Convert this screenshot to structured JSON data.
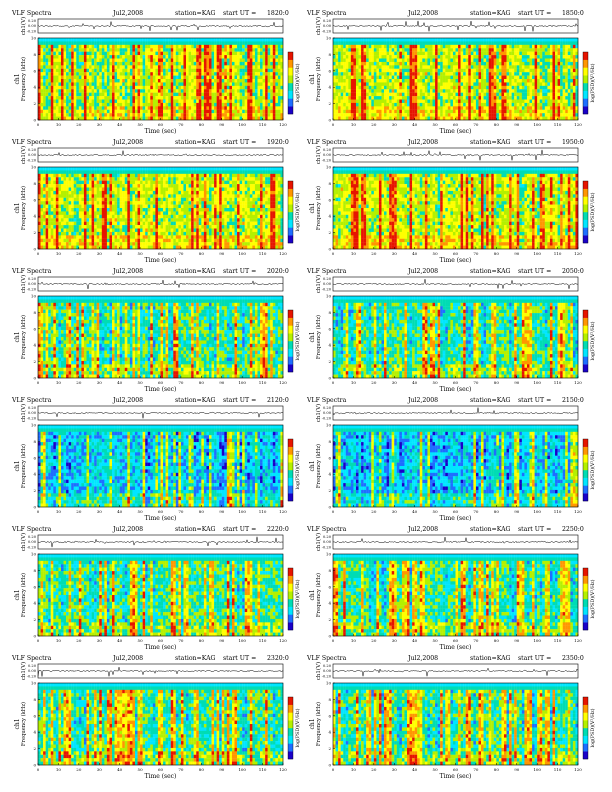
{
  "figure": {
    "background": "#ffffff"
  },
  "common": {
    "header_left": "VLF Spectra",
    "date": "Jul2,2008",
    "station": "station=KAG",
    "start_prefix": "start  UT  =",
    "wave_ylabel": "ch1(V)",
    "spec_ylabel_line1": "ch1",
    "spec_ylabel_line2": "Frequency  (kHz)",
    "colorbar_label": "log(PSD)(V²/Hz)",
    "xlabel": "Time  (sec)",
    "wave_yticks": [
      "0.20",
      "0.00",
      "-0.20"
    ],
    "spec_yticks": [
      "0",
      "2",
      "4",
      "6",
      "8",
      "10"
    ],
    "xticks": [
      "0",
      "10",
      "20",
      "30",
      "40",
      "50",
      "60",
      "70",
      "80",
      "90",
      "100",
      "110",
      "120"
    ],
    "colormap": [
      "#1a00c8",
      "#1e6eff",
      "#00e6ff",
      "#00dcb4",
      "#b4f000",
      "#ffff00",
      "#ff9600",
      "#e61400"
    ]
  },
  "chart_data": [
    {
      "type": "heatmap",
      "start_ut": "1820:0",
      "xlim": [
        0,
        120
      ],
      "ylim_khz": [
        0,
        10
      ],
      "intensity": "high"
    },
    {
      "type": "heatmap",
      "start_ut": "1850:0",
      "xlim": [
        0,
        120
      ],
      "ylim_khz": [
        0,
        10
      ],
      "intensity": "high"
    },
    {
      "type": "heatmap",
      "start_ut": "1920:0",
      "xlim": [
        0,
        120
      ],
      "ylim_khz": [
        0,
        10
      ],
      "intensity": "high"
    },
    {
      "type": "heatmap",
      "start_ut": "1950:0",
      "xlim": [
        0,
        120
      ],
      "ylim_khz": [
        0,
        10
      ],
      "intensity": "high"
    },
    {
      "type": "heatmap",
      "start_ut": "2020:0",
      "xlim": [
        0,
        120
      ],
      "ylim_khz": [
        0,
        10
      ],
      "intensity": "medium"
    },
    {
      "type": "heatmap",
      "start_ut": "2050:0",
      "xlim": [
        0,
        120
      ],
      "ylim_khz": [
        0,
        10
      ],
      "intensity": "medium"
    },
    {
      "type": "heatmap",
      "start_ut": "2120:0",
      "xlim": [
        0,
        120
      ],
      "ylim_khz": [
        0,
        10
      ],
      "intensity": "low"
    },
    {
      "type": "heatmap",
      "start_ut": "2150:0",
      "xlim": [
        0,
        120
      ],
      "ylim_khz": [
        0,
        10
      ],
      "intensity": "low"
    },
    {
      "type": "heatmap",
      "start_ut": "2220:0",
      "xlim": [
        0,
        120
      ],
      "ylim_khz": [
        0,
        10
      ],
      "intensity": "medium"
    },
    {
      "type": "heatmap",
      "start_ut": "2250:0",
      "xlim": [
        0,
        120
      ],
      "ylim_khz": [
        0,
        10
      ],
      "intensity": "medium"
    },
    {
      "type": "heatmap",
      "start_ut": "2320:0",
      "xlim": [
        0,
        120
      ],
      "ylim_khz": [
        0,
        10
      ],
      "intensity": "medium"
    },
    {
      "type": "heatmap",
      "start_ut": "2350:0",
      "xlim": [
        0,
        120
      ],
      "ylim_khz": [
        0,
        10
      ],
      "intensity": "medium"
    }
  ]
}
